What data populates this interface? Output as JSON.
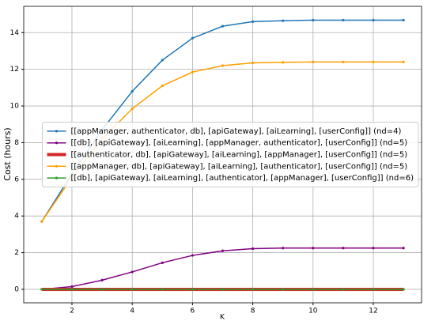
{
  "chart_data": {
    "type": "line",
    "x_label": "K",
    "y_label": "Cost (hours)",
    "x": [
      1,
      2,
      3,
      4,
      5,
      6,
      7,
      8,
      9,
      10,
      11,
      12,
      13
    ],
    "series": [
      {
        "name": "[[appManager, authenticator, db], [apiGateway], [aiLearning], [userConfig]] (nd=4)",
        "color": "#1f77b4",
        "line_width": 1.5,
        "values": [
          3.7,
          6.3,
          8.7,
          10.8,
          12.5,
          13.7,
          14.35,
          14.6,
          14.65,
          14.68,
          14.68,
          14.68,
          14.68
        ]
      },
      {
        "name": "[[db], [apiGateway], [aiLearning], [appManager, authenticator], [userConfig]] (nd=5)",
        "color": "#800080",
        "line_width": 1.5,
        "values": [
          0,
          0.15,
          0.5,
          0.95,
          1.45,
          1.85,
          2.1,
          2.22,
          2.25,
          2.25,
          2.25,
          2.25,
          2.25
        ]
      },
      {
        "name": "[[authenticator, db], [apiGateway], [aiLearning], [appManager], [userConfig]] (nd=5)",
        "color": "#d62728",
        "line_width": 4,
        "values": [
          0,
          0,
          0,
          0,
          0,
          0,
          0,
          0,
          0,
          0,
          0,
          0,
          0
        ]
      },
      {
        "name": "[[appManager, db], [apiGateway], [aiLearning], [authenticator], [userConfig]] (nd=5)",
        "color": "#ff9f00",
        "line_width": 1.5,
        "values": [
          3.7,
          6.1,
          8.2,
          9.85,
          11.1,
          11.85,
          12.2,
          12.35,
          12.38,
          12.4,
          12.4,
          12.4,
          12.4
        ]
      },
      {
        "name": "[[db], [apiGateway], [aiLearning], [authenticator], [appManager], [userConfig]] (nd=6)",
        "color": "#2ca02c",
        "line_width": 1.5,
        "values": [
          0,
          0,
          0,
          0,
          0,
          0,
          0,
          0,
          0,
          0,
          0,
          0,
          0
        ]
      }
    ],
    "xlim": [
      0.4,
      13.6
    ],
    "xticks": [
      2,
      4,
      6,
      8,
      10,
      12
    ],
    "ylim": [
      -0.735,
      15.435
    ],
    "yticks": [
      0,
      2,
      4,
      6,
      8,
      10,
      12,
      14
    ],
    "grid": true,
    "legend": "center right"
  }
}
